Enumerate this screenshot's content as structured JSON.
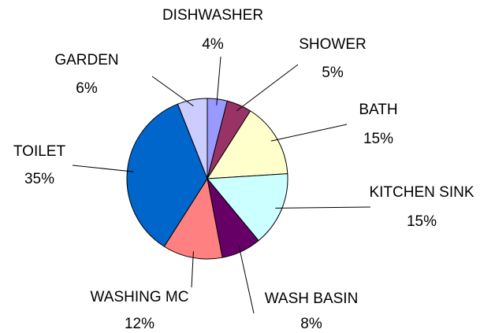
{
  "chart_data": {
    "type": "pie",
    "categories": [
      "DISHWASHER",
      "SHOWER",
      "BATH",
      "KITCHEN SINK",
      "WASH BASIN",
      "WASHING MC",
      "TOILET",
      "GARDEN"
    ],
    "values": [
      4,
      5,
      15,
      15,
      8,
      12,
      35,
      6
    ],
    "value_labels": [
      "4%",
      "5%",
      "15%",
      "15%",
      "8%",
      "12%",
      "35%",
      "6%"
    ],
    "colors": [
      "#9999ff",
      "#993366",
      "#ffffcc",
      "#ccffff",
      "#660066",
      "#ff8080",
      "#0066cc",
      "#ccccff"
    ]
  }
}
